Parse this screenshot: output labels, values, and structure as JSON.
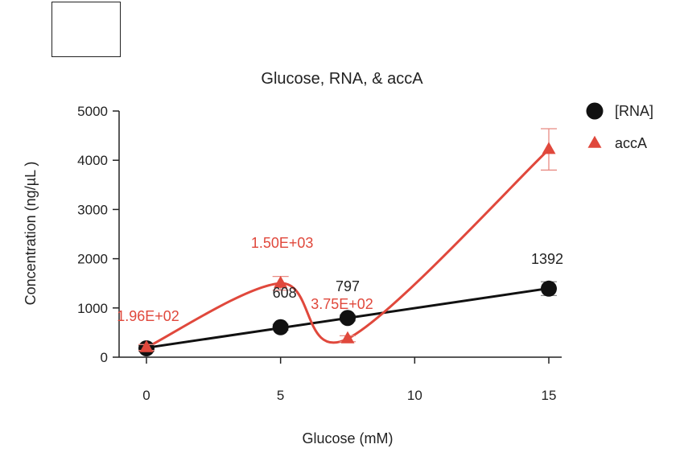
{
  "chart_data": {
    "type": "line",
    "title": "Glucose, RNA, & accA",
    "xlabel": "Glucose (mM)",
    "ylabel": "Concentration (ng/µL )",
    "xlim": [
      -0.6,
      15.5
    ],
    "ylim": [
      0,
      5000
    ],
    "xticks": [
      0,
      5,
      10,
      15
    ],
    "yticks": [
      0,
      1000,
      2000,
      3000,
      4000,
      5000
    ],
    "legend_position": "top-right",
    "series": [
      {
        "name": "[RNA]",
        "marker": "circle",
        "color": "#111111",
        "fit": "linear",
        "x": [
          0,
          5,
          7.5,
          15
        ],
        "y": [
          180,
          608,
          797,
          1392
        ],
        "error": [
          60,
          60,
          60,
          140
        ],
        "labels": [
          "",
          "608",
          "797",
          "1392"
        ]
      },
      {
        "name": "accA",
        "marker": "triangle",
        "color": "#e0483c",
        "fit": "smooth",
        "x": [
          0,
          5,
          7.5,
          15
        ],
        "y": [
          196,
          1500,
          375,
          4220
        ],
        "error": [
          60,
          140,
          60,
          420
        ],
        "labels": [
          "1.96E+02",
          "1.50E+03",
          "3.75E+02",
          ""
        ]
      }
    ]
  }
}
